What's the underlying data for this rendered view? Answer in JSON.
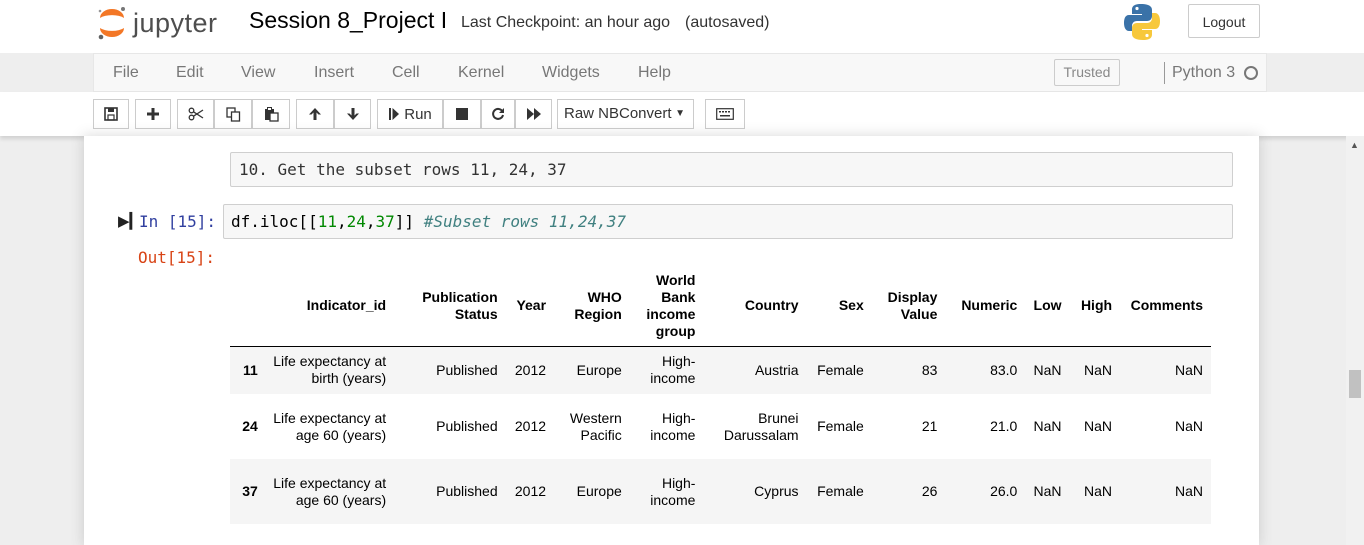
{
  "header": {
    "brand": "jupyter",
    "notebook_title": "Session 8_Project I",
    "checkpoint": "Last Checkpoint: an hour ago",
    "autosave_status": "(autosaved)",
    "logout_label": "Logout"
  },
  "menu": {
    "items": [
      "File",
      "Edit",
      "View",
      "Insert",
      "Cell",
      "Kernel",
      "Widgets",
      "Help"
    ],
    "trusted_label": "Trusted",
    "kernel_name": "Python 3"
  },
  "toolbar": {
    "run_label": "Run",
    "cell_type": "Raw NBConvert",
    "icons": [
      "save-icon",
      "plus-icon",
      "cut-icon",
      "copy-icon",
      "paste-icon",
      "arrow-up-icon",
      "arrow-down-icon",
      "step-run-icon",
      "stop-icon",
      "restart-icon",
      "fast-forward-icon",
      "keyboard-icon"
    ]
  },
  "cells": {
    "markdown_text": "10. Get the subset rows 11, 24, 37",
    "in_prompt": "In [15]:",
    "out_prompt": "Out[15]:",
    "code": {
      "p1": "df.iloc[[",
      "n1": "11",
      "p2": ",",
      "n2": "24",
      "p3": ",",
      "n3": "37",
      "p4": "]] ",
      "comment": "#Subset rows 11,24,37"
    }
  },
  "table": {
    "columns": [
      "",
      "Indicator_id",
      "Publication Status",
      "Year",
      "WHO Region",
      "World Bank income group",
      "Country",
      "Sex",
      "Display Value",
      "Numeric",
      "Low",
      "High",
      "Comments"
    ],
    "rows": [
      {
        "index": "11",
        "cells": [
          "Life expectancy at birth (years)",
          "Published",
          "2012",
          "Europe",
          "High-income",
          "Austria",
          "Female",
          "83",
          "83.0",
          "NaN",
          "NaN",
          "NaN"
        ]
      },
      {
        "index": "24",
        "cells": [
          "Life expectancy at age 60 (years)",
          "Published",
          "2012",
          "Western Pacific",
          "High-income",
          "Brunei Darussalam",
          "Female",
          "21",
          "21.0",
          "NaN",
          "NaN",
          "NaN"
        ]
      },
      {
        "index": "37",
        "cells": [
          "Life expectancy at age 60 (years)",
          "Published",
          "2012",
          "Europe",
          "High-income",
          "Cyprus",
          "Female",
          "26",
          "26.0",
          "NaN",
          "NaN",
          "NaN"
        ]
      }
    ]
  },
  "colors": {
    "in_prompt": "#303f9f",
    "out_prompt": "#d84315",
    "code_number": "#008800",
    "code_comment": "#408080",
    "jupyter_orange": "#f37726"
  }
}
